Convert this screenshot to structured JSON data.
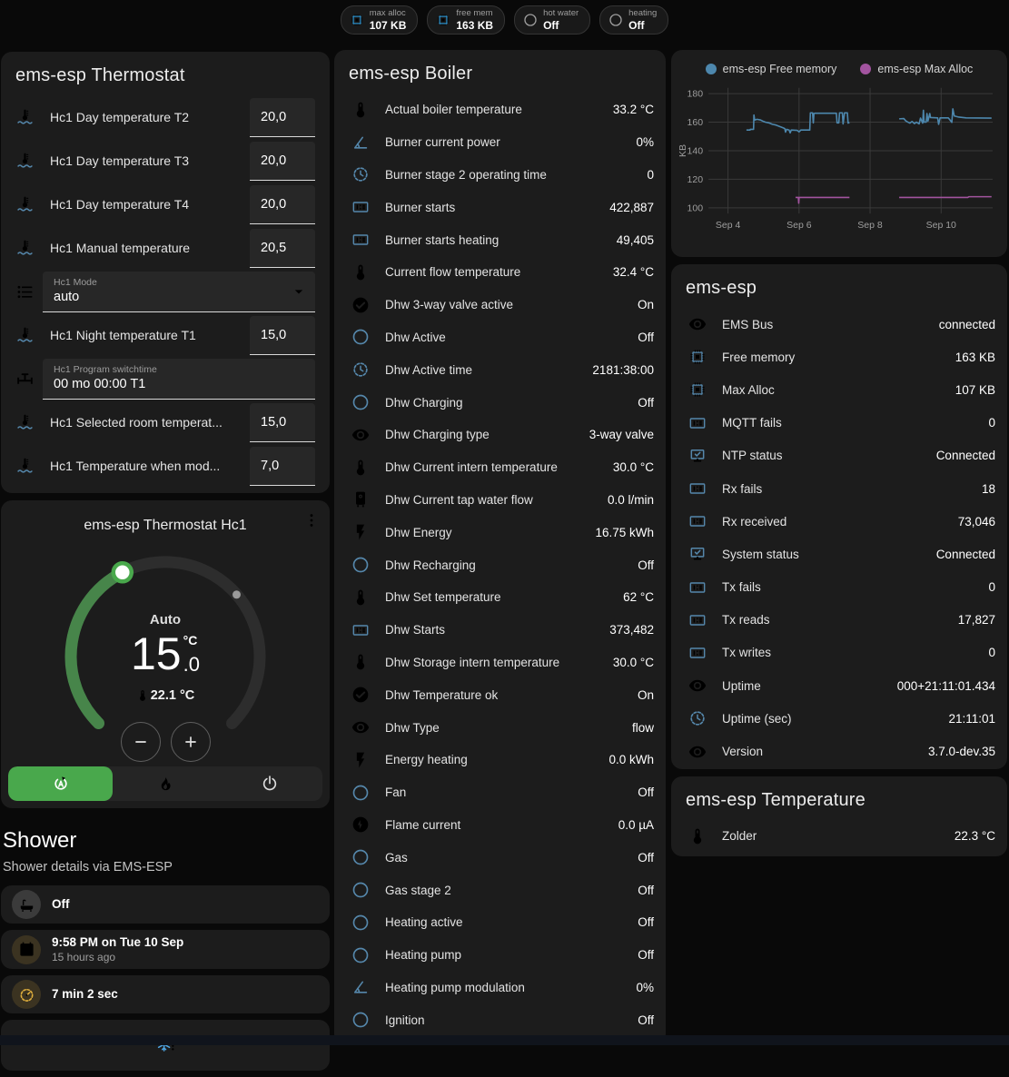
{
  "colors": {
    "accent_blue": "#5587ab",
    "chip_blue": "#2f9fe0",
    "amber": "#e0af3d",
    "green": "#49a84c",
    "green_arc": "#47854a",
    "chart_blue": "#4d87ad",
    "chart_purple": "#a2549f"
  },
  "chips": [
    {
      "label": "max alloc",
      "value": "107 KB",
      "icon": "memory",
      "color": "blue"
    },
    {
      "label": "free mem",
      "value": "163 KB",
      "icon": "memory",
      "color": "blue"
    },
    {
      "label": "hot water",
      "value": "Off",
      "icon": "circle-outline",
      "color": "gray"
    },
    {
      "label": "heating",
      "value": "Off",
      "icon": "circle-outline",
      "color": "gray"
    }
  ],
  "thermostat_card": {
    "title": "ems-esp Thermostat",
    "rows": [
      {
        "type": "number",
        "icon": "thermometer-water",
        "label": "Hc1 Day temperature T2",
        "value": "20,0"
      },
      {
        "type": "number",
        "icon": "thermometer-water",
        "label": "Hc1 Day temperature T3",
        "value": "20,0"
      },
      {
        "type": "number",
        "icon": "thermometer-water",
        "label": "Hc1 Day temperature T4",
        "value": "20,0"
      },
      {
        "type": "number",
        "icon": "thermometer-water",
        "label": "Hc1 Manual temperature",
        "value": "20,5"
      },
      {
        "type": "select",
        "icon": "format-list",
        "label": "Hc1 Mode",
        "value": "auto"
      },
      {
        "type": "number",
        "icon": "thermometer-water",
        "label": "Hc1 Night temperature T1",
        "value": "15,0"
      },
      {
        "type": "text",
        "icon": "pipe-valve",
        "label": "Hc1 Program switchtime",
        "value": "00 mo 00:00 T1"
      },
      {
        "type": "number",
        "icon": "thermometer-water",
        "label": "Hc1 Selected room temperat...",
        "value": "15,0"
      },
      {
        "type": "number",
        "icon": "thermometer-water",
        "label": "Hc1 Temperature when mod...",
        "value": "7,0"
      }
    ]
  },
  "dial_card": {
    "title": "ems-esp Thermostat Hc1",
    "mode_label": "Auto",
    "target_int": "15",
    "target_dec": ".0",
    "target_unit": "°C",
    "current": "22.1 °C",
    "mode_buttons": [
      {
        "icon": "auto",
        "name": "auto",
        "active": true
      },
      {
        "icon": "fire",
        "name": "heat"
      },
      {
        "icon": "power",
        "name": "off"
      }
    ]
  },
  "shower": {
    "title": "Shower",
    "subtitle": "Shower details via EMS-ESP",
    "items": [
      {
        "icon": "bathtub",
        "value": "Off",
        "color": "gray"
      },
      {
        "icon": "calendar",
        "value": "9:58 PM on Tue 10 Sep",
        "secondary": "15 hours ago",
        "color": "amber"
      },
      {
        "icon": "timer-dash",
        "value": "7 min 2 sec",
        "color": "amber"
      }
    ],
    "frost_icon": "snowflake-alert"
  },
  "boiler_card": {
    "title": "ems-esp Boiler",
    "rows": [
      {
        "icon": "thermometer",
        "label": "Actual boiler temperature",
        "value": "33.2 °C"
      },
      {
        "icon": "angle-acute",
        "label": "Burner current power",
        "value": "0%"
      },
      {
        "icon": "progress-clock",
        "label": "Burner stage 2 operating time",
        "value": "0"
      },
      {
        "icon": "counter",
        "label": "Burner starts",
        "value": "422,887"
      },
      {
        "icon": "counter",
        "label": "Burner starts heating",
        "value": "49,405"
      },
      {
        "icon": "thermometer",
        "label": "Current flow temperature",
        "value": "32.4 °C"
      },
      {
        "icon": "check-circle",
        "label": "Dhw 3-way valve active",
        "value": "On"
      },
      {
        "icon": "circle-outline",
        "label": "Dhw Active",
        "value": "Off"
      },
      {
        "icon": "progress-clock",
        "label": "Dhw Active time",
        "value": "2181:38:00"
      },
      {
        "icon": "circle-outline",
        "label": "Dhw Charging",
        "value": "Off"
      },
      {
        "icon": "eye",
        "label": "Dhw Charging type",
        "value": "3-way valve"
      },
      {
        "icon": "thermometer",
        "label": "Dhw Current intern temperature",
        "value": "30.0 °C"
      },
      {
        "icon": "water-boiler",
        "label": "Dhw Current tap water flow",
        "value": "0.0 l/min"
      },
      {
        "icon": "flash",
        "label": "Dhw Energy",
        "value": "16.75 kWh"
      },
      {
        "icon": "circle-outline",
        "label": "Dhw Recharging",
        "value": "Off"
      },
      {
        "icon": "thermometer",
        "label": "Dhw Set temperature",
        "value": "62 °C"
      },
      {
        "icon": "counter",
        "label": "Dhw Starts",
        "value": "373,482"
      },
      {
        "icon": "thermometer",
        "label": "Dhw Storage intern temperature",
        "value": "30.0 °C"
      },
      {
        "icon": "check-circle",
        "label": "Dhw Temperature ok",
        "value": "On"
      },
      {
        "icon": "eye",
        "label": "Dhw Type",
        "value": "flow"
      },
      {
        "icon": "flash",
        "label": "Energy heating",
        "value": "0.0 kWh"
      },
      {
        "icon": "circle-outline",
        "label": "Fan",
        "value": "Off"
      },
      {
        "icon": "flash-circle",
        "label": "Flame current",
        "value": "0.0 µA"
      },
      {
        "icon": "circle-outline",
        "label": "Gas",
        "value": "Off"
      },
      {
        "icon": "circle-outline",
        "label": "Gas stage 2",
        "value": "Off"
      },
      {
        "icon": "circle-outline",
        "label": "Heating active",
        "value": "Off"
      },
      {
        "icon": "circle-outline",
        "label": "Heating pump",
        "value": "Off"
      },
      {
        "icon": "angle-acute",
        "label": "Heating pump modulation",
        "value": "0%"
      },
      {
        "icon": "circle-outline",
        "label": "Ignition",
        "value": "Off"
      }
    ]
  },
  "device_card": {
    "title": "ems-esp",
    "rows": [
      {
        "icon": "eye",
        "label": "EMS Bus",
        "value": "connected"
      },
      {
        "icon": "memory",
        "label": "Free memory",
        "value": "163 KB"
      },
      {
        "icon": "memory",
        "label": "Max Alloc",
        "value": "107 KB"
      },
      {
        "icon": "counter",
        "label": "MQTT fails",
        "value": "0"
      },
      {
        "icon": "network",
        "label": "NTP status",
        "value": "Connected"
      },
      {
        "icon": "counter",
        "label": "Rx fails",
        "value": "18"
      },
      {
        "icon": "counter",
        "label": "Rx received",
        "value": "73,046"
      },
      {
        "icon": "network",
        "label": "System status",
        "value": "Connected"
      },
      {
        "icon": "counter",
        "label": "Tx fails",
        "value": "0"
      },
      {
        "icon": "counter",
        "label": "Tx reads",
        "value": "17,827"
      },
      {
        "icon": "counter",
        "label": "Tx writes",
        "value": "0"
      },
      {
        "icon": "eye",
        "label": "Uptime",
        "value": "000+21:11:01.434"
      },
      {
        "icon": "progress-clock",
        "label": "Uptime (sec)",
        "value": "21:11:01"
      },
      {
        "icon": "eye",
        "label": "Version",
        "value": "3.7.0-dev.35"
      }
    ]
  },
  "temperature_card": {
    "title": "ems-esp Temperature",
    "rows": [
      {
        "icon": "thermometer",
        "label": "Zolder",
        "value": "22.3 °C"
      }
    ]
  },
  "chart_data": {
    "type": "line",
    "title": "",
    "xlabel": "",
    "ylabel": "KB",
    "grid": true,
    "legend_position": "top",
    "xlim": [
      3.45,
      11.45
    ],
    "ylim": [
      96,
      184
    ],
    "yticks": [
      {
        "v": 100,
        "label": "100"
      },
      {
        "v": 120,
        "label": "120"
      },
      {
        "v": 140,
        "label": "140"
      },
      {
        "v": 160,
        "label": "160"
      },
      {
        "v": 180,
        "label": "180"
      }
    ],
    "xticks": [
      {
        "v": 4,
        "label": "Sep 4"
      },
      {
        "v": 6,
        "label": "Sep 6"
      },
      {
        "v": 8,
        "label": "Sep 8"
      },
      {
        "v": 10,
        "label": "Sep 10"
      }
    ],
    "series": [
      {
        "name": "ems-esp Free memory",
        "color": "#4d87ad",
        "unit": "KB",
        "segments": [
          [
            [
              4.52,
              154.5
            ],
            [
              4.62,
              154.5
            ],
            [
              4.63,
              155
            ],
            [
              4.72,
              155
            ],
            [
              4.73,
              165
            ],
            [
              4.75,
              161.5
            ],
            [
              4.82,
              162
            ],
            [
              4.92,
              161.5
            ],
            [
              5.0,
              160.5
            ],
            [
              5.05,
              160
            ],
            [
              5.15,
              159.5
            ],
            [
              5.25,
              158.5
            ],
            [
              5.35,
              158
            ],
            [
              5.45,
              157
            ],
            [
              5.55,
              156
            ],
            [
              5.6,
              155.5
            ],
            [
              5.62,
              153
            ],
            [
              5.65,
              155
            ],
            [
              5.72,
              154.5
            ],
            [
              5.75,
              152.5
            ],
            [
              5.78,
              154.5
            ],
            [
              5.95,
              154.2
            ],
            [
              6.0,
              153.2
            ],
            [
              6.05,
              154.5
            ],
            [
              6.3,
              154.5
            ],
            [
              6.32,
              166.5
            ],
            [
              6.38,
              166.5
            ],
            [
              6.4,
              159.5
            ],
            [
              6.42,
              166
            ],
            [
              6.45,
              166.3
            ],
            [
              7.05,
              166.3
            ],
            [
              7.07,
              159.5
            ],
            [
              7.12,
              159.5
            ],
            [
              7.14,
              166.5
            ],
            [
              7.22,
              166.5
            ],
            [
              7.24,
              158.8
            ],
            [
              7.28,
              166.5
            ],
            [
              7.36,
              166.5
            ],
            [
              7.38,
              159.3
            ],
            [
              7.42,
              159.8
            ]
          ],
          [
            [
              8.82,
              162.3
            ],
            [
              8.95,
              162.5
            ],
            [
              9.0,
              161
            ],
            [
              9.05,
              160.2
            ],
            [
              9.12,
              159.3
            ],
            [
              9.18,
              160.5
            ],
            [
              9.25,
              159
            ],
            [
              9.3,
              160
            ],
            [
              9.38,
              158.8
            ],
            [
              9.42,
              162.8
            ],
            [
              9.48,
              159.3
            ],
            [
              9.5,
              168.3
            ],
            [
              9.52,
              160
            ],
            [
              9.58,
              160
            ],
            [
              9.6,
              166
            ],
            [
              9.63,
              160.8
            ],
            [
              9.68,
              166
            ],
            [
              9.7,
              163.2
            ],
            [
              9.9,
              163
            ],
            [
              9.93,
              158.5
            ],
            [
              9.97,
              163
            ],
            [
              10.2,
              163
            ],
            [
              10.24,
              161.8
            ],
            [
              10.3,
              159.8
            ],
            [
              10.33,
              169.3
            ],
            [
              10.37,
              164.3
            ],
            [
              10.5,
              163.5
            ],
            [
              10.7,
              163
            ],
            [
              11.42,
              162.8
            ]
          ]
        ]
      },
      {
        "name": "ems-esp Max Alloc",
        "color": "#a2549f",
        "unit": "KB",
        "segments": [
          [
            [
              5.9,
              107.3
            ],
            [
              5.98,
              107.3
            ],
            [
              5.99,
              103.3
            ],
            [
              6.0,
              107.3
            ],
            [
              7.42,
              107.3
            ]
          ],
          [
            [
              8.82,
              107.3
            ],
            [
              10.75,
              107.3
            ],
            [
              10.78,
              107.8
            ],
            [
              11.42,
              107.8
            ]
          ]
        ]
      }
    ]
  }
}
